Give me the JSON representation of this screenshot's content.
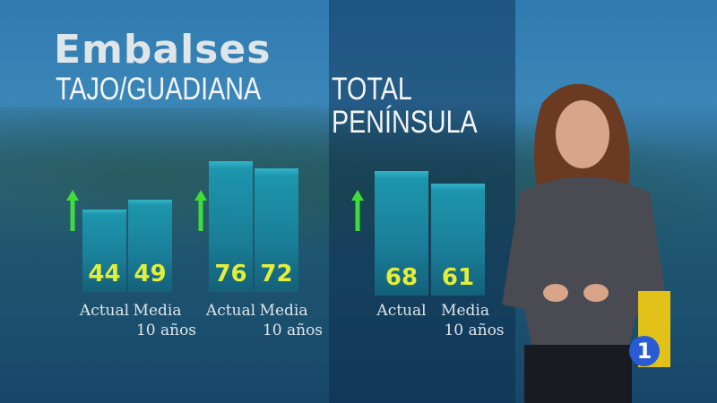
{
  "header": {
    "title": "Embalses"
  },
  "chart_data": {
    "type": "bar",
    "unit": "",
    "groups": [
      {
        "name": "TAJO/GUADIANA",
        "trend": "up",
        "bars": [
          {
            "label": "Actual",
            "value": 44
          },
          {
            "label": "Media 10 años",
            "value": 49
          }
        ]
      },
      {
        "name": "",
        "trend": "up",
        "bars": [
          {
            "label": "Actual",
            "value": 76
          },
          {
            "label": "Media 10 años",
            "value": 72
          }
        ]
      },
      {
        "name": "TOTAL PENÍNSULA",
        "trend": "up",
        "bars": [
          {
            "label": "Actual",
            "value": 68
          },
          {
            "label": "Media 10 años",
            "value": 61
          }
        ]
      }
    ],
    "labels": {
      "actual": "Actual",
      "media": "Media",
      "years": "10 años"
    },
    "colors": {
      "bar": "#1d96ad",
      "value": "#e2ef3a",
      "arrow": "#3fdc3a"
    }
  },
  "subtitles": {
    "left": "TAJO/GUADIANA",
    "right_1": "TOTAL",
    "right_2": "PENÍNSULA"
  },
  "channel_logo": {
    "text": "1",
    "color": "#2a5bd7"
  }
}
